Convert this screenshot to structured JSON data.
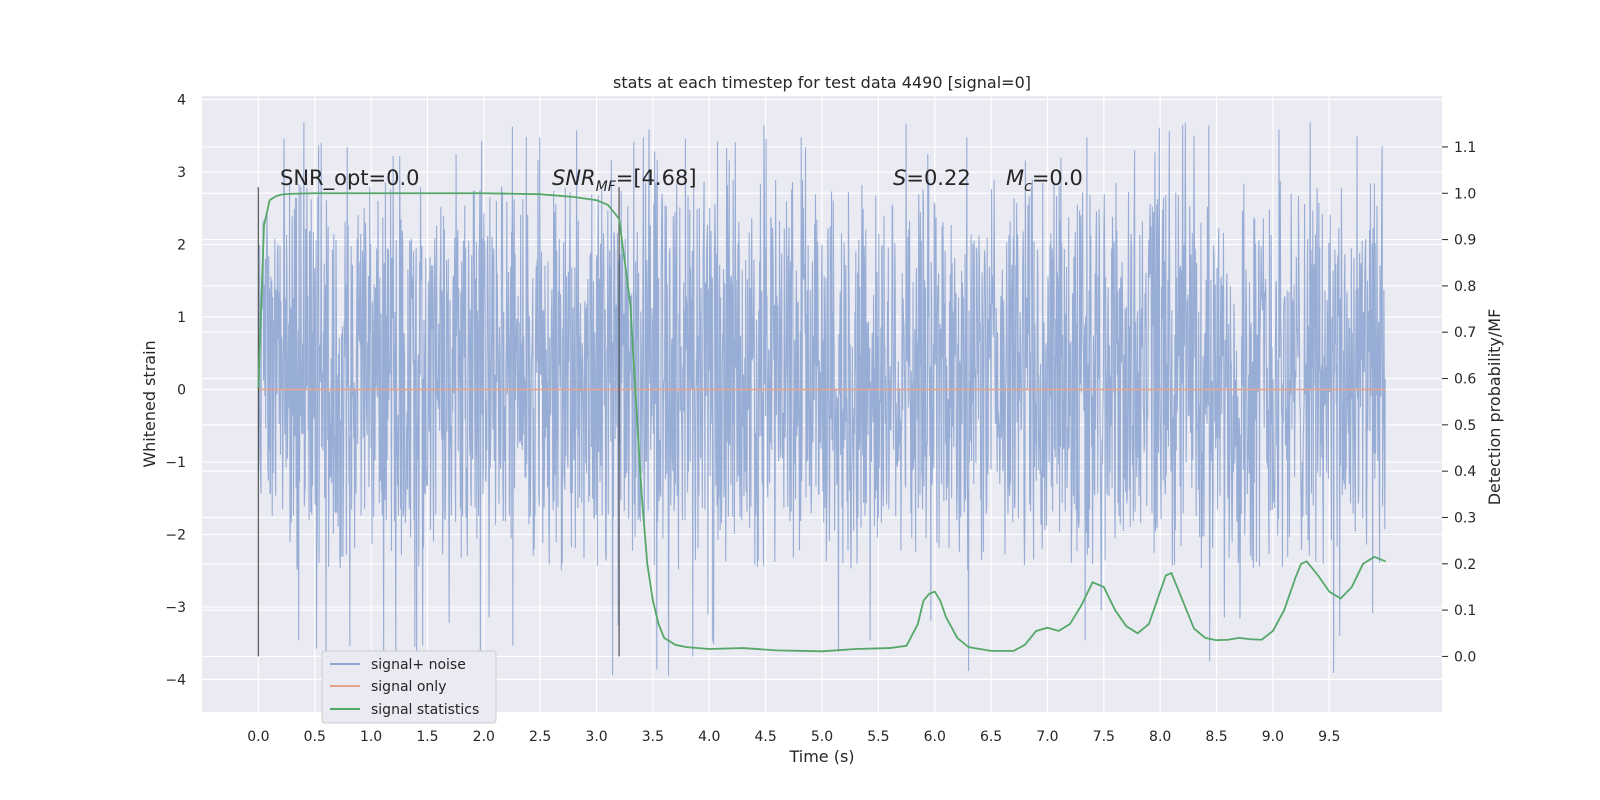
{
  "chart_data": {
    "type": "line",
    "title": "stats at each timestep for test data 4490 [signal=0]",
    "xlabel": "Time (s)",
    "ylabel": "Whitened strain",
    "y2label": "Detection probability/MF",
    "xlim": [
      -0.5,
      10.5
    ],
    "ylim": [
      -4.45,
      4.05
    ],
    "y2lim": [
      -0.12,
      1.21
    ],
    "x_ticks": [
      "0.0",
      "0.5",
      "1.0",
      "1.5",
      "2.0",
      "2.5",
      "3.0",
      "3.5",
      "4.0",
      "4.5",
      "5.0",
      "5.5",
      "6.0",
      "6.5",
      "7.0",
      "7.5",
      "8.0",
      "8.5",
      "9.0",
      "9.5"
    ],
    "y_ticks": [
      "4",
      "3",
      "2",
      "1",
      "0",
      "−1",
      "−2",
      "−3",
      "−4"
    ],
    "y2_ticks": [
      "1.1",
      "1.0",
      "0.9",
      "0.8",
      "0.7",
      "0.6",
      "0.5",
      "0.4",
      "0.3",
      "0.2",
      "0.1",
      "0.0"
    ],
    "grid": true,
    "legend_position": "lower-left",
    "annotations": {
      "snr_opt": "SNR_opt=0.0",
      "snr_mf_prefix": "SNR",
      "snr_mf_sub": "MF",
      "snr_mf_value": "=[4.68]",
      "s_label": "S",
      "s_value": "=0.22",
      "mc_label": "M",
      "mc_sub": "c",
      "mc_value": "=0.0"
    },
    "vertical_markers_x": [
      0.0,
      3.2
    ],
    "series": [
      {
        "name": "signal+ noise",
        "color": "#8fa6d1",
        "kind": "noise",
        "x_range": [
          0.0,
          10.0
        ],
        "typical_band": [
          -2.5,
          2.9
        ],
        "extremes": [
          -4.05,
          3.7
        ]
      },
      {
        "name": "signal only",
        "color": "#e8a48a",
        "x": [
          0.0,
          10.0
        ],
        "values": [
          0.0,
          0.0
        ]
      },
      {
        "name": "signal statistics",
        "color": "#55a868",
        "axis": "right",
        "x": [
          0.0,
          0.05,
          0.1,
          0.15,
          0.2,
          0.3,
          0.5,
          0.8,
          1.0,
          1.5,
          2.0,
          2.5,
          2.8,
          3.0,
          3.1,
          3.2,
          3.3,
          3.35,
          3.4,
          3.45,
          3.5,
          3.55,
          3.6,
          3.7,
          3.8,
          4.0,
          4.3,
          4.6,
          5.0,
          5.3,
          5.6,
          5.75,
          5.85,
          5.9,
          5.95,
          6.0,
          6.05,
          6.1,
          6.2,
          6.3,
          6.5,
          6.7,
          6.8,
          6.9,
          7.0,
          7.1,
          7.2,
          7.3,
          7.4,
          7.5,
          7.6,
          7.7,
          7.8,
          7.9,
          8.0,
          8.05,
          8.1,
          8.2,
          8.3,
          8.4,
          8.5,
          8.6,
          8.7,
          8.8,
          8.9,
          9.0,
          9.1,
          9.2,
          9.25,
          9.3,
          9.4,
          9.5,
          9.6,
          9.7,
          9.8,
          9.9,
          10.0
        ],
        "values": [
          0.58,
          0.93,
          0.985,
          0.993,
          0.997,
          0.999,
          1.0,
          1.0,
          1.0,
          1.0,
          1.0,
          0.998,
          0.992,
          0.985,
          0.975,
          0.945,
          0.76,
          0.55,
          0.35,
          0.2,
          0.12,
          0.07,
          0.04,
          0.025,
          0.02,
          0.016,
          0.018,
          0.013,
          0.011,
          0.016,
          0.018,
          0.023,
          0.07,
          0.12,
          0.135,
          0.14,
          0.12,
          0.085,
          0.04,
          0.02,
          0.012,
          0.012,
          0.025,
          0.055,
          0.062,
          0.055,
          0.07,
          0.11,
          0.16,
          0.15,
          0.1,
          0.065,
          0.05,
          0.07,
          0.14,
          0.175,
          0.18,
          0.12,
          0.06,
          0.04,
          0.035,
          0.036,
          0.04,
          0.037,
          0.036,
          0.055,
          0.1,
          0.17,
          0.2,
          0.205,
          0.175,
          0.14,
          0.125,
          0.15,
          0.2,
          0.215,
          0.205
        ]
      }
    ]
  }
}
